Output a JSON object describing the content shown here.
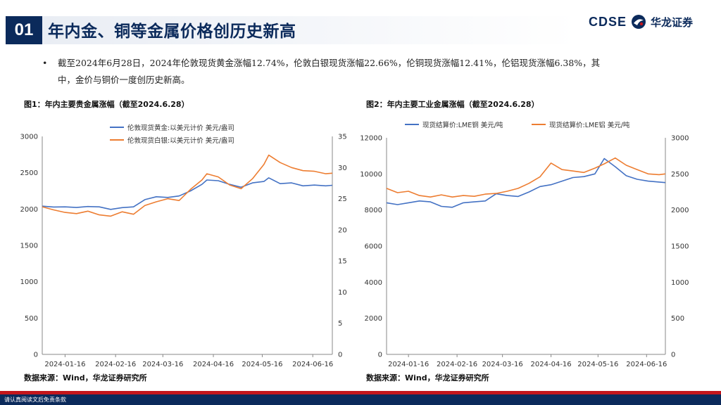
{
  "header": {
    "section_no": "01",
    "title": "年内金、铜等金属价格创历史新高",
    "logo_en": "CDSE",
    "logo_cn": "华龙证券"
  },
  "bullet": {
    "line1": "截至2024年6月28日，2024年伦敦现货黄金涨幅12.74%，伦敦白银现货涨幅22.66%，伦铜现货涨幅12.41%，伦铝现货涨幅6.38%，其",
    "line2": "中，金价与铜价一度创历史新高。"
  },
  "footer": {
    "text": "请认真阅读文后免责条款"
  },
  "colors": {
    "blue": "#4472c4",
    "orange": "#ed7d31",
    "navy": "#0b2a5b",
    "red": "#c3161c"
  },
  "chart_data": [
    {
      "type": "line",
      "title": "图1：年内主要贵金属涨幅（截至2024.6.28）",
      "source": "数据来源：Wind，华龙证券研究所",
      "x_ticks": [
        "2024-01-16",
        "2024-02-16",
        "2024-03-16",
        "2024-04-16",
        "2024-05-16",
        "2024-06-16"
      ],
      "x_range": [
        "2024-01-02",
        "2024-06-28"
      ],
      "ylim_left": [
        0,
        3000
      ],
      "yticks_left": [
        0,
        500,
        1000,
        1500,
        2000,
        2500,
        3000
      ],
      "ylim_right": [
        0,
        35
      ],
      "yticks_right": [
        0,
        5,
        10,
        15,
        20,
        25,
        30,
        35
      ],
      "legend": "top",
      "series": [
        {
          "name": "伦敦现货黄金:以美元计价 美元/盎司",
          "axis": "left",
          "color": "#4472c4",
          "x": [
            "2024-01-02",
            "2024-01-09",
            "2024-01-16",
            "2024-01-23",
            "2024-01-30",
            "2024-02-06",
            "2024-02-13",
            "2024-02-20",
            "2024-02-27",
            "2024-03-05",
            "2024-03-12",
            "2024-03-19",
            "2024-03-26",
            "2024-04-02",
            "2024-04-09",
            "2024-04-12",
            "2024-04-19",
            "2024-04-26",
            "2024-05-03",
            "2024-05-10",
            "2024-05-17",
            "2024-05-20",
            "2024-05-27",
            "2024-06-03",
            "2024-06-10",
            "2024-06-17",
            "2024-06-24",
            "2024-06-28"
          ],
          "values": [
            2040,
            2028,
            2030,
            2022,
            2035,
            2030,
            1995,
            2020,
            2030,
            2130,
            2170,
            2160,
            2180,
            2250,
            2340,
            2400,
            2390,
            2340,
            2300,
            2360,
            2380,
            2430,
            2350,
            2360,
            2320,
            2330,
            2320,
            2327
          ]
        },
        {
          "name": "伦敦现货白银:以美元计价 美元/盎司",
          "axis": "right",
          "color": "#ed7d31",
          "x": [
            "2024-01-02",
            "2024-01-09",
            "2024-01-16",
            "2024-01-23",
            "2024-01-30",
            "2024-02-06",
            "2024-02-13",
            "2024-02-20",
            "2024-02-27",
            "2024-03-05",
            "2024-03-12",
            "2024-03-19",
            "2024-03-26",
            "2024-04-02",
            "2024-04-09",
            "2024-04-12",
            "2024-04-19",
            "2024-04-26",
            "2024-05-03",
            "2024-05-10",
            "2024-05-17",
            "2024-05-20",
            "2024-05-27",
            "2024-06-03",
            "2024-06-10",
            "2024-06-17",
            "2024-06-24",
            "2024-06-28"
          ],
          "values": [
            23.7,
            23.2,
            22.8,
            22.6,
            23.0,
            22.4,
            22.2,
            22.9,
            22.5,
            23.9,
            24.5,
            25.0,
            24.7,
            26.5,
            28.0,
            29.0,
            28.5,
            27.2,
            26.6,
            28.2,
            30.5,
            32.0,
            30.8,
            30.0,
            29.5,
            29.4,
            29.0,
            29.1
          ]
        }
      ]
    },
    {
      "type": "line",
      "title": "图2：年内主要工业金属涨幅（截至2024.6.28）",
      "source": "数据来源：Wind，华龙证券研究所",
      "x_ticks": [
        "2024-01-16",
        "2024-02-16",
        "2024-03-16",
        "2024-04-16",
        "2024-05-16",
        "2024-06-16"
      ],
      "x_range": [
        "2024-01-02",
        "2024-06-28"
      ],
      "ylim_left": [
        0,
        12000
      ],
      "yticks_left": [
        0,
        2000,
        4000,
        6000,
        8000,
        10000,
        12000
      ],
      "ylim_right": [
        0,
        3000
      ],
      "yticks_right": [
        0,
        500,
        1000,
        1500,
        2000,
        2500,
        3000
      ],
      "legend": "top",
      "series": [
        {
          "name": "现货结算价:LME铜 美元/吨",
          "axis": "left",
          "color": "#4472c4",
          "x": [
            "2024-01-02",
            "2024-01-09",
            "2024-01-16",
            "2024-01-23",
            "2024-01-30",
            "2024-02-06",
            "2024-02-13",
            "2024-02-20",
            "2024-02-27",
            "2024-03-05",
            "2024-03-12",
            "2024-03-19",
            "2024-03-26",
            "2024-04-02",
            "2024-04-09",
            "2024-04-16",
            "2024-04-23",
            "2024-04-30",
            "2024-05-07",
            "2024-05-14",
            "2024-05-20",
            "2024-05-27",
            "2024-06-03",
            "2024-06-10",
            "2024-06-17",
            "2024-06-24",
            "2024-06-28"
          ],
          "values": [
            8400,
            8300,
            8400,
            8500,
            8450,
            8200,
            8150,
            8400,
            8450,
            8500,
            8900,
            8800,
            8750,
            9000,
            9300,
            9400,
            9600,
            9800,
            9850,
            10000,
            10850,
            10400,
            9900,
            9700,
            9600,
            9550,
            9520
          ]
        },
        {
          "name": "现货结算价:LME铝 美元/吨",
          "axis": "right",
          "color": "#ed7d31",
          "x": [
            "2024-01-02",
            "2024-01-09",
            "2024-01-16",
            "2024-01-23",
            "2024-01-30",
            "2024-02-06",
            "2024-02-13",
            "2024-02-20",
            "2024-02-27",
            "2024-03-05",
            "2024-03-12",
            "2024-03-19",
            "2024-03-26",
            "2024-04-02",
            "2024-04-09",
            "2024-04-16",
            "2024-04-23",
            "2024-04-30",
            "2024-05-07",
            "2024-05-14",
            "2024-05-20",
            "2024-05-27",
            "2024-06-03",
            "2024-06-10",
            "2024-06-17",
            "2024-06-24",
            "2024-06-28"
          ],
          "values": [
            2300,
            2240,
            2260,
            2200,
            2180,
            2210,
            2180,
            2200,
            2190,
            2220,
            2230,
            2260,
            2300,
            2370,
            2460,
            2650,
            2560,
            2540,
            2520,
            2580,
            2640,
            2720,
            2620,
            2560,
            2500,
            2490,
            2500
          ]
        }
      ]
    }
  ]
}
